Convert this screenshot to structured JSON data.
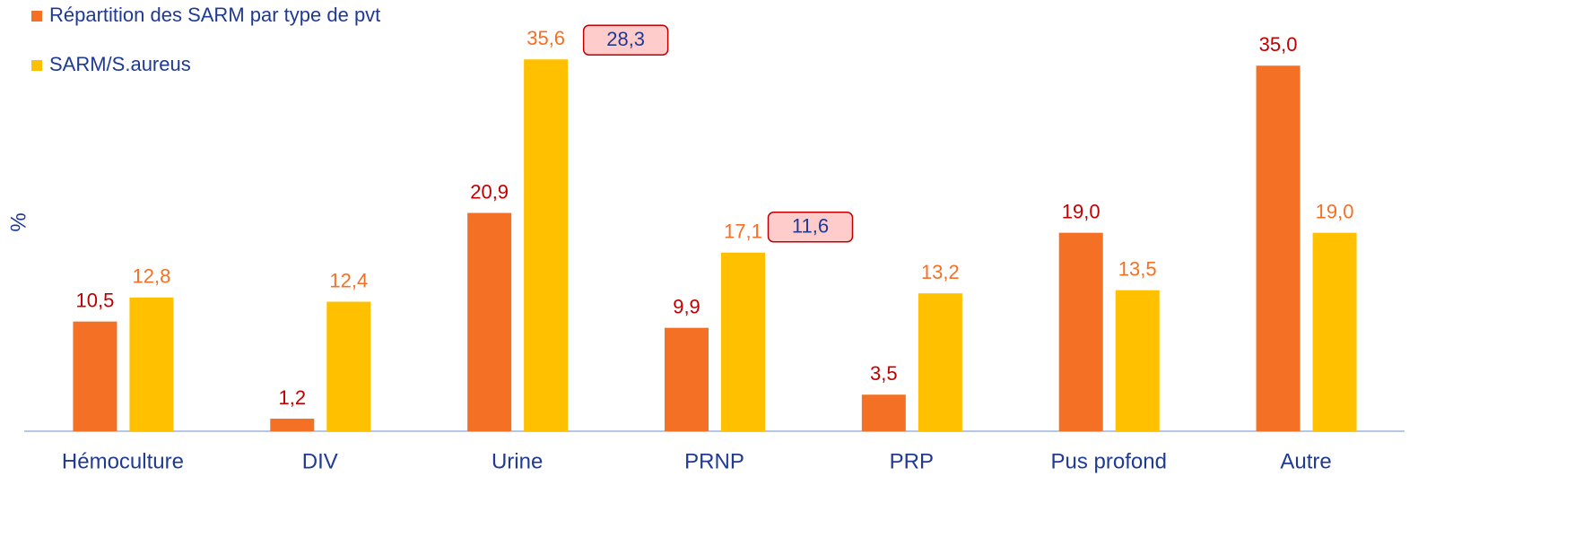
{
  "chart_data": {
    "type": "bar",
    "y_label": "%",
    "categories": [
      "Hémoculture",
      "DIV",
      "Urine",
      "PRNP",
      "PRP",
      "Pus profond",
      "Autre"
    ],
    "series": [
      {
        "name": "Répartition des SARM par type de pvt",
        "color": "#F47024",
        "label_color": "#C00000",
        "values": [
          10.5,
          1.2,
          20.9,
          9.9,
          3.5,
          19.0,
          35.0
        ],
        "value_labels": [
          "10,5",
          "1,2",
          "20,9",
          "9,9",
          "3,5",
          "19,0",
          "35,0"
        ]
      },
      {
        "name": "SARM/S.aureus",
        "color": "#FFC000",
        "label_color": "#F47024",
        "values": [
          12.8,
          12.4,
          35.6,
          17.1,
          13.2,
          13.5,
          19.0
        ],
        "value_labels": [
          "12,8",
          "12,4",
          "35,6",
          "17,1",
          "13,2",
          "13,5",
          "19,0"
        ]
      }
    ],
    "annotations": [
      "28,3",
      "11,6"
    ],
    "ylim": [
      0,
      40
    ],
    "legend": "top-left",
    "grid": false
  }
}
